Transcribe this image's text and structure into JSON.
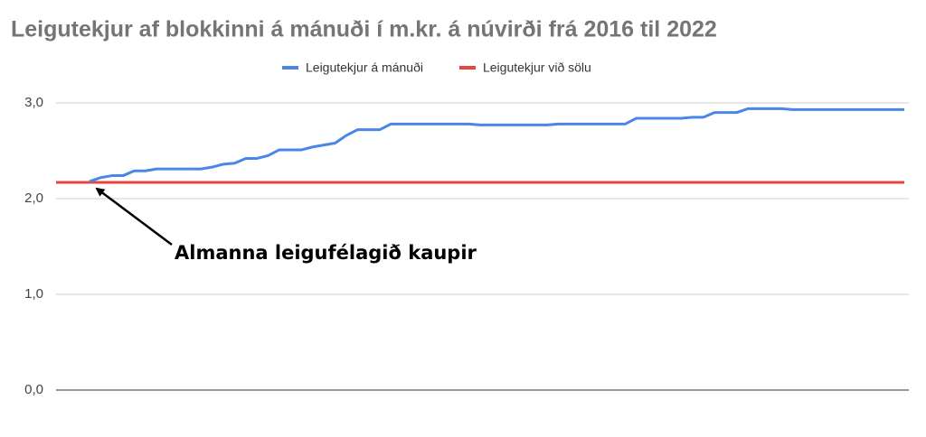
{
  "chart_data": {
    "type": "line",
    "title": "Leigutekjur af blokkinni á mánuði í m.kr. á núvirði frá 2016 til 2022",
    "categories": [
      null,
      null,
      null,
      null,
      null,
      null,
      null,
      null,
      null,
      null,
      null,
      null,
      null,
      null,
      null,
      null,
      null,
      null,
      null,
      null,
      null,
      null,
      null,
      null,
      null,
      null,
      null,
      null,
      null,
      null,
      null,
      null,
      null,
      null,
      null,
      null,
      null,
      null,
      null,
      null,
      null,
      null,
      null,
      null,
      null,
      null,
      null,
      null,
      null,
      null,
      null,
      null,
      null,
      null,
      null,
      null,
      null,
      null,
      null,
      null,
      null,
      null,
      null,
      null,
      null,
      null,
      null,
      null,
      null,
      null,
      null,
      null,
      null,
      null,
      null,
      null,
      null
    ],
    "series": [
      {
        "name": "Leigutekjur á mánuði",
        "color": "#4a86e8",
        "values": [
          null,
          null,
          null,
          2.18,
          2.22,
          2.24,
          2.24,
          2.29,
          2.29,
          2.31,
          2.31,
          2.31,
          2.31,
          2.31,
          2.33,
          2.36,
          2.37,
          2.42,
          2.42,
          2.45,
          2.51,
          2.51,
          2.51,
          2.54,
          2.56,
          2.58,
          2.66,
          2.72,
          2.72,
          2.72,
          2.78,
          2.78,
          2.78,
          2.78,
          2.78,
          2.78,
          2.78,
          2.78,
          2.77,
          2.77,
          2.77,
          2.77,
          2.77,
          2.77,
          2.77,
          2.78,
          2.78,
          2.78,
          2.78,
          2.78,
          2.78,
          2.78,
          2.84,
          2.84,
          2.84,
          2.84,
          2.84,
          2.85,
          2.85,
          2.9,
          2.9,
          2.9,
          2.94,
          2.94,
          2.94,
          2.94,
          2.93,
          2.93,
          2.93,
          2.93,
          2.93,
          2.93,
          2.93,
          2.93,
          2.93,
          2.93,
          2.93
        ]
      },
      {
        "name": "Leigutekjur við sölu",
        "color": "#e8453c",
        "values": [
          2.17,
          2.17,
          2.17,
          2.17,
          2.17,
          2.17,
          2.17,
          2.17,
          2.17,
          2.17,
          2.17,
          2.17,
          2.17,
          2.17,
          2.17,
          2.17,
          2.17,
          2.17,
          2.17,
          2.17,
          2.17,
          2.17,
          2.17,
          2.17,
          2.17,
          2.17,
          2.17,
          2.17,
          2.17,
          2.17,
          2.17,
          2.17,
          2.17,
          2.17,
          2.17,
          2.17,
          2.17,
          2.17,
          2.17,
          2.17,
          2.17,
          2.17,
          2.17,
          2.17,
          2.17,
          2.17,
          2.17,
          2.17,
          2.17,
          2.17,
          2.17,
          2.17,
          2.17,
          2.17,
          2.17,
          2.17,
          2.17,
          2.17,
          2.17,
          2.17,
          2.17,
          2.17,
          2.17,
          2.17,
          2.17,
          2.17,
          2.17,
          2.17,
          2.17,
          2.17,
          2.17,
          2.17,
          2.17,
          2.17,
          2.17,
          2.17,
          2.17
        ]
      }
    ],
    "ylim": [
      0,
      3
    ],
    "yticks": [
      {
        "value": 0,
        "label": "0,0"
      },
      {
        "value": 1,
        "label": "1,0"
      },
      {
        "value": 2,
        "label": "2,0"
      },
      {
        "value": 3,
        "label": "3,0"
      }
    ],
    "grid": true,
    "legend": "top",
    "annotation": {
      "text": "Almanna leigufélagið kaupir",
      "category_index": 3,
      "series_index": 0
    }
  }
}
